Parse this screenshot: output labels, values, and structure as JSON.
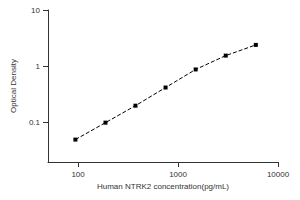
{
  "chart_data": {
    "type": "line",
    "x_label": "Human NTRK2 concentration(pg/mL)",
    "y_label": "Optical Density",
    "x": [
      94,
      188,
      375,
      750,
      1500,
      3000,
      6000
    ],
    "values": [
      0.05,
      0.1,
      0.2,
      0.42,
      0.88,
      1.55,
      2.4
    ],
    "color": "#000000",
    "marker": "square",
    "line_style": "dashed",
    "log": true,
    "xlim": [
      50,
      10000
    ],
    "xticks": [
      100,
      1000,
      10000
    ],
    "ylim": [
      0.02,
      10
    ],
    "yticks": [
      0.1,
      1,
      10
    ],
    "grid": false
  }
}
